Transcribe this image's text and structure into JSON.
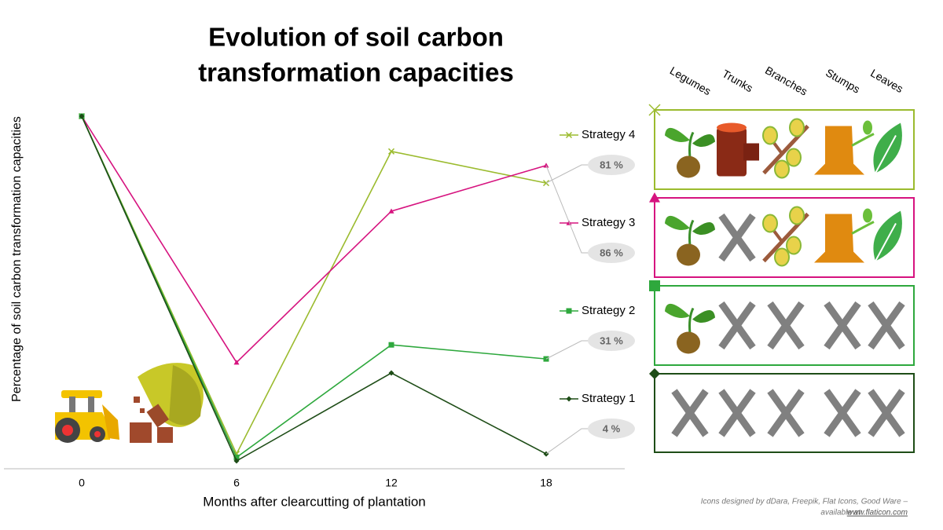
{
  "chart_data": {
    "type": "line",
    "title": [
      "Evolution of soil carbon",
      "transformation capacities"
    ],
    "y_label": "Percentage of soil carbon transformation capacities",
    "x_label": "Months  after clearcutting of plantation",
    "x": [
      0,
      6,
      12,
      18
    ],
    "xlim": [
      0,
      18
    ],
    "xticks": [
      0,
      6,
      12,
      18
    ],
    "ylim": [
      0,
      100
    ],
    "residue_columns": [
      "Legumes",
      "Trunks",
      "Branches",
      "Stumps",
      "Leaves"
    ],
    "series": [
      {
        "name": "Strategy 4",
        "color": "#9bbb2e",
        "marker": "x",
        "values": [
          100,
          4,
          90,
          81
        ],
        "value_labels": [
          null,
          null,
          null,
          "81 %"
        ],
        "keeps": [
          true,
          true,
          true,
          true,
          true
        ]
      },
      {
        "name": "Strategy 3",
        "color": "#d6137f",
        "marker": "triangle",
        "values": [
          100,
          30,
          73,
          86
        ],
        "value_labels": [
          null,
          null,
          null,
          "86 %"
        ],
        "keeps": [
          true,
          false,
          true,
          true,
          true
        ]
      },
      {
        "name": "Strategy 2",
        "color": "#2ea83d",
        "marker": "square",
        "values": [
          100,
          3,
          35,
          31
        ],
        "value_labels": [
          null,
          null,
          null,
          "31 %"
        ],
        "keeps": [
          true,
          false,
          false,
          false,
          false
        ]
      },
      {
        "name": "Strategy 1",
        "color": "#1e4d17",
        "marker": "diamond",
        "values": [
          100,
          2,
          27,
          4
        ],
        "value_labels": [
          null,
          null,
          null,
          "4 %"
        ],
        "keeps": [
          false,
          false,
          false,
          false,
          false
        ]
      }
    ]
  },
  "credit": {
    "text": "Icons designed by dDara, Freepik, Flat Icons, Good Ware –",
    "text2": "available at",
    "link": "www.flaticon.com"
  }
}
